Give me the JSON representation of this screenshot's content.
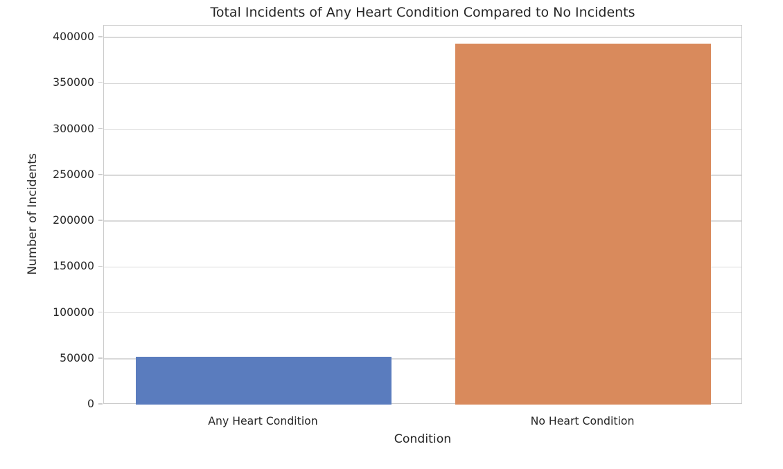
{
  "chart_data": {
    "type": "bar",
    "title": "Total Incidents of Any Heart Condition Compared to No Incidents",
    "xlabel": "Condition",
    "ylabel": "Number of Incidents",
    "categories": [
      "Any Heart Condition",
      "No Heart Condition"
    ],
    "values": [
      52000,
      393000
    ],
    "bar_colors": [
      "#5a7cbe",
      "#d98a5c"
    ],
    "ylim": [
      0,
      413000
    ],
    "yticks": [
      0,
      50000,
      100000,
      150000,
      200000,
      250000,
      300000,
      350000,
      400000
    ],
    "ytick_labels": [
      "0",
      "50000",
      "100000",
      "150000",
      "200000",
      "250000",
      "300000",
      "350000",
      "400000"
    ],
    "grid": "horizontal",
    "legend": "none",
    "background_color": "#ffffff",
    "grid_color": "#d9d9d9",
    "axis_edge_color": "#cccccc",
    "text_color": "#262626"
  }
}
